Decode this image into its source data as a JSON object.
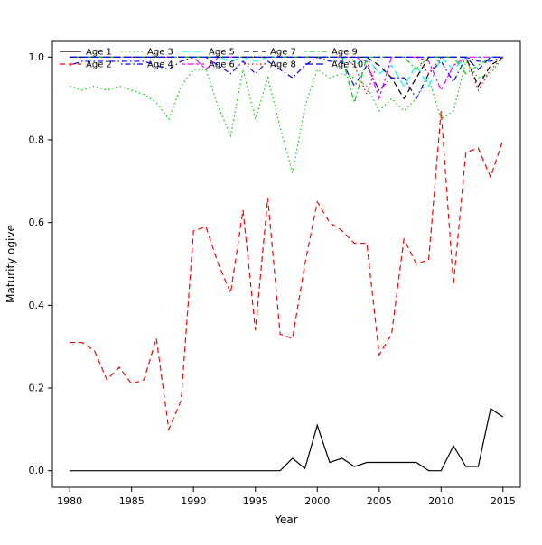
{
  "chart_data": {
    "type": "line",
    "title": "",
    "xlabel": "Year",
    "ylabel": "Maturity ogive",
    "xlim": [
      1980,
      2015
    ],
    "ylim": [
      0.0,
      1.0
    ],
    "x_ticks": [
      1980,
      1985,
      1990,
      1995,
      2000,
      2005,
      2010,
      2015
    ],
    "y_ticks": [
      "0.0",
      "0.2",
      "0.4",
      "0.6",
      "0.8",
      "1.0"
    ],
    "grid": false,
    "legend_position": "top-inside",
    "legend_ncol": 5,
    "x": [
      1980,
      1981,
      1982,
      1983,
      1984,
      1985,
      1986,
      1987,
      1988,
      1989,
      1990,
      1991,
      1992,
      1993,
      1994,
      1995,
      1996,
      1997,
      1998,
      1999,
      2000,
      2001,
      2002,
      2003,
      2004,
      2005,
      2006,
      2007,
      2008,
      2009,
      2010,
      2011,
      2012,
      2013,
      2014,
      2015
    ],
    "series": [
      {
        "name": "Age 1",
        "color": "#000000",
        "dash": "solid",
        "values": [
          0,
          0,
          0,
          0,
          0,
          0,
          0,
          0,
          0,
          0,
          0,
          0,
          0,
          0,
          0,
          0,
          0,
          0,
          0.03,
          0.005,
          0.11,
          0.02,
          0.03,
          0.01,
          0.02,
          0.02,
          0.02,
          0.02,
          0.02,
          0,
          0,
          0.06,
          0.01,
          0.01,
          0.15,
          0.13
        ]
      },
      {
        "name": "Age 2",
        "color": "#FF0000",
        "dash": "dashed",
        "values": [
          0.31,
          0.31,
          0.29,
          0.22,
          0.25,
          0.21,
          0.22,
          0.32,
          0.1,
          0.17,
          0.58,
          0.59,
          0.5,
          0.43,
          0.63,
          0.34,
          0.66,
          0.33,
          0.32,
          0.5,
          0.65,
          0.6,
          0.58,
          0.55,
          0.55,
          0.28,
          0.33,
          0.56,
          0.5,
          0.51,
          0.87,
          0.45,
          0.77,
          0.78,
          0.71,
          0.8
        ]
      },
      {
        "name": "Age 3",
        "color": "#00CD00",
        "dash": "dotted",
        "values": [
          0.93,
          0.92,
          0.93,
          0.92,
          0.93,
          0.92,
          0.91,
          0.89,
          0.85,
          0.93,
          0.97,
          0.97,
          0.88,
          0.81,
          0.97,
          0.85,
          0.95,
          0.83,
          0.72,
          0.88,
          0.97,
          0.95,
          0.96,
          0.95,
          0.93,
          0.87,
          0.9,
          0.87,
          0.9,
          0.95,
          0.85,
          0.87,
          0.99,
          0.95,
          0.96,
          1.0
        ]
      },
      {
        "name": "Age 4",
        "color": "#0000FF",
        "dash": "dotdash",
        "values": [
          0.98,
          0.99,
          0.99,
          0.99,
          0.99,
          0.99,
          0.99,
          0.98,
          0.97,
          0.99,
          1.0,
          1.0,
          0.98,
          0.96,
          0.99,
          0.96,
          0.99,
          0.97,
          0.95,
          0.98,
          1.0,
          0.99,
          0.99,
          0.93,
          0.98,
          0.92,
          0.95,
          0.95,
          0.9,
          0.96,
          0.99,
          0.94,
          1.0,
          0.99,
          0.99,
          1.0
        ]
      },
      {
        "name": "Age 5",
        "color": "#00FFFF",
        "dash": "longdash",
        "values": [
          1,
          1,
          1,
          1,
          1,
          1,
          1,
          1,
          1,
          1,
          1,
          1,
          1,
          0.99,
          1,
          0.99,
          1,
          1,
          1,
          1,
          1,
          1,
          1,
          0.98,
          1,
          0.96,
          0.98,
          0.93,
          0.98,
          0.93,
          1,
          0.97,
          1,
          1,
          1,
          1
        ]
      },
      {
        "name": "Age 6",
        "color": "#FF00FF",
        "dash": "twodash",
        "values": [
          1,
          1,
          1,
          1,
          1,
          1,
          1,
          1,
          1,
          1,
          1,
          0.97,
          1,
          1,
          1,
          1,
          1,
          1,
          1,
          1,
          1,
          1,
          1,
          1,
          0.99,
          0.9,
          1,
          1,
          1,
          0.99,
          0.92,
          0.98,
          1,
          1,
          1,
          1
        ]
      },
      {
        "name": "Age 7",
        "color": "#000000",
        "dash": "dashed",
        "values": [
          1,
          1,
          1,
          1,
          1,
          1,
          1,
          1,
          1,
          1,
          1,
          1,
          1,
          1,
          1,
          1,
          1,
          1,
          1,
          1,
          1,
          1,
          1,
          1,
          1,
          0.98,
          0.95,
          0.9,
          0.95,
          1,
          1,
          1,
          1,
          0.93,
          0.98,
          1
        ]
      },
      {
        "name": "Age 8",
        "color": "#FF0000",
        "dash": "dotted",
        "values": [
          1,
          1,
          1,
          1,
          1,
          1,
          1,
          1,
          1,
          1,
          1,
          1,
          1,
          1,
          1,
          1,
          1,
          1,
          1,
          1,
          1,
          1,
          1,
          0.98,
          0.91,
          1,
          1,
          1,
          1,
          0.96,
          1,
          1,
          1,
          0.92,
          0.97,
          1
        ]
      },
      {
        "name": "Age 9",
        "color": "#00CD00",
        "dash": "dotdash",
        "values": [
          1,
          1,
          1,
          1,
          1,
          1,
          1,
          1,
          1,
          1,
          1,
          1,
          1,
          1,
          1,
          1,
          1,
          1,
          1,
          1,
          1,
          1,
          1,
          0.89,
          1,
          1,
          1,
          1,
          0.97,
          1,
          1,
          1,
          0.96,
          0.98,
          1,
          1
        ]
      },
      {
        "name": "Age 10",
        "color": "#0000FF",
        "dash": "longdash",
        "values": [
          1,
          1,
          1,
          1,
          1,
          1,
          1,
          1,
          1,
          1,
          1,
          1,
          1,
          1,
          1,
          1,
          1,
          1,
          1,
          1,
          1,
          1,
          1,
          1,
          1,
          1,
          1,
          1,
          1,
          1,
          1,
          1,
          1,
          0.97,
          1,
          1
        ]
      }
    ]
  }
}
